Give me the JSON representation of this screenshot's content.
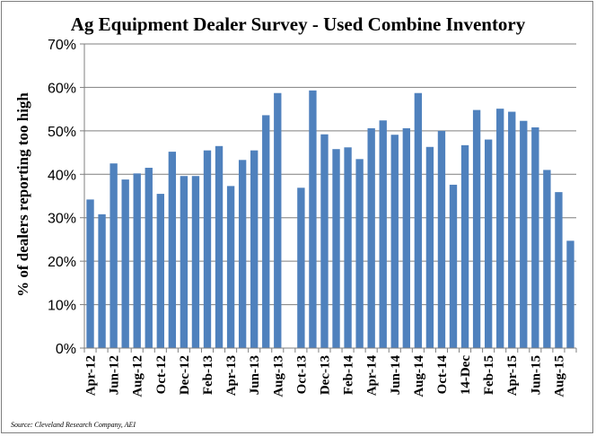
{
  "chart_data": {
    "type": "bar",
    "title": "Ag Equipment Dealer Survey - Used Combine Inventory",
    "xlabel": "",
    "ylabel": "% of dealers reporting too high",
    "source": "Source: Cleveland Research Company, AEI",
    "ylim": [
      0,
      70
    ],
    "yticks": [
      "0%",
      "10%",
      "20%",
      "30%",
      "40%",
      "50%",
      "60%",
      "70%"
    ],
    "grid": true,
    "bar_color": "#4f81bd",
    "series": [
      {
        "values": [
          34.2,
          30.8,
          42.5,
          38.8,
          40.2,
          41.5,
          35.5,
          45.2,
          39.6,
          39.6,
          45.5,
          46.5,
          37.3,
          43.3,
          45.5,
          53.6,
          58.7,
          null,
          36.9,
          59.3,
          49.2,
          45.8,
          46.2,
          43.5,
          50.6,
          52.4,
          49.1,
          50.6,
          58.7,
          46.3,
          50.0,
          37.6,
          46.7,
          54.8,
          48.0,
          55.1,
          54.4,
          52.3,
          50.8,
          41.0,
          35.9,
          24.7
        ]
      }
    ],
    "categories": [
      "Apr-12",
      "May-12",
      "Jun-12",
      "Jul-12",
      "Aug-12",
      "Sep-12",
      "Oct-12",
      "Nov-12",
      "Dec-12",
      "Jan-13",
      "Feb-13",
      "Mar-13",
      "Apr-13",
      "May-13",
      "Jun-13",
      "Jul-13",
      "Aug-13",
      "Sep-13",
      "Oct-13",
      "Nov-13",
      "Dec-13",
      "Jan-14",
      "Feb-14",
      "Mar-14",
      "Apr-14",
      "May-14",
      "Jun-14",
      "Jul-14",
      "Aug-14",
      "Sep-14",
      "Oct-14",
      "Nov-14",
      "14-Dec",
      "Jan-15",
      "Feb-15",
      "Mar-15",
      "Apr-15",
      "May-15",
      "Jun-15",
      "Jul-15",
      "Aug-15",
      "Sep-15"
    ],
    "x_tick_labels": [
      "Apr-12",
      "Jun-12",
      "Aug-12",
      "Oct-12",
      "Dec-12",
      "Feb-13",
      "Apr-13",
      "Jun-13",
      "Aug-13",
      "Oct-13",
      "Dec-13",
      "Feb-14",
      "Apr-14",
      "Jun-14",
      "Aug-14",
      "Oct-14",
      "14-Dec",
      "Feb-15",
      "Apr-15",
      "Jun-15",
      "Aug-15"
    ]
  }
}
